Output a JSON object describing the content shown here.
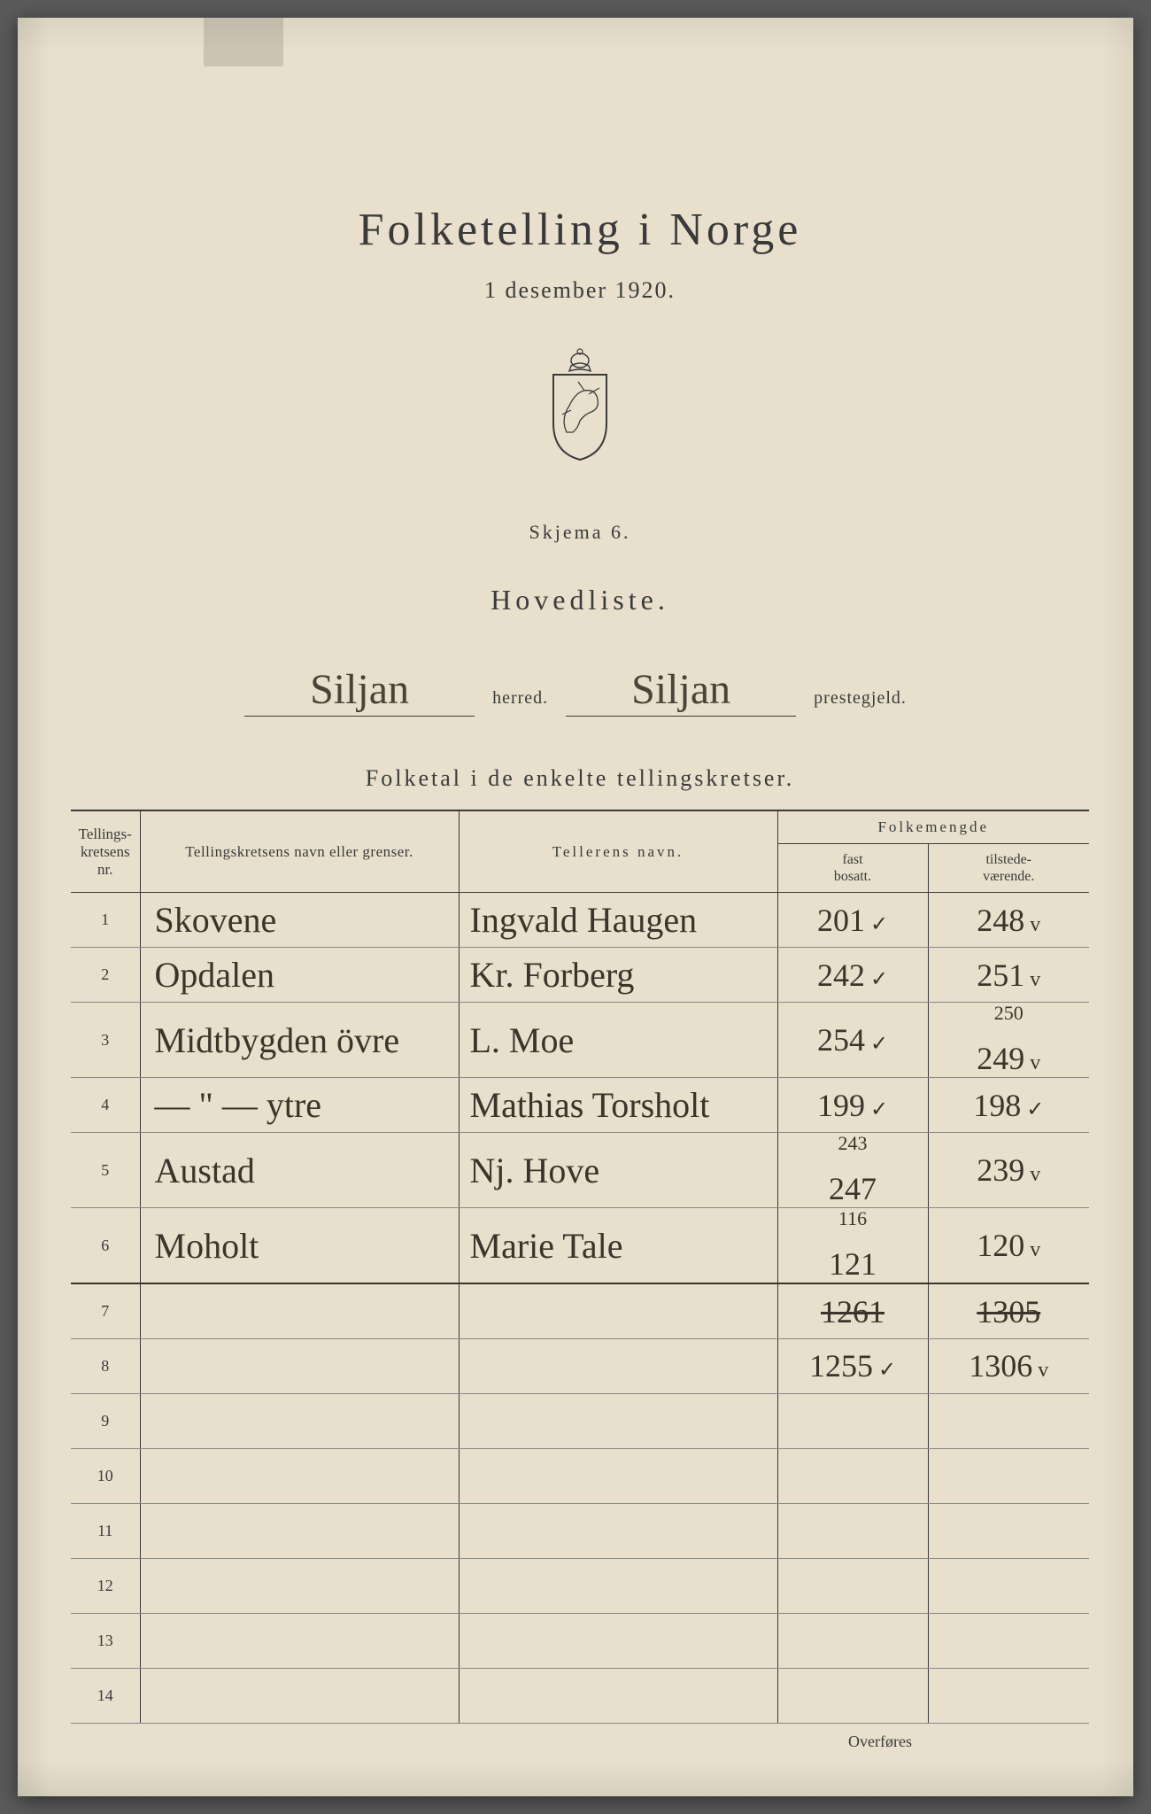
{
  "title": "Folketelling i Norge",
  "date": "1 desember 1920.",
  "skjema": "Skjema 6.",
  "listTitle": "Hovedliste.",
  "herred": {
    "value": "Siljan",
    "label": "herred."
  },
  "prestegjeld": {
    "value": "Siljan",
    "label": "prestegjeld."
  },
  "sectionTitle": "Folketal i de enkelte tellingskretser.",
  "columns": {
    "nr": "Tellings-\nkretsens\nnr.",
    "name": "Tellingskretsens navn eller grenser.",
    "teller": "Tellerens navn.",
    "folkeGroup": "Folkemengde",
    "fast": "fast\nbosatt.",
    "tilstede": "tilstede-\nværende."
  },
  "rows": [
    {
      "nr": "1",
      "name": "Skovene",
      "teller": "Ingvald Haugen",
      "fast": "201",
      "fastCheck": "✓",
      "tilstede": "248",
      "tilCheck": "v"
    },
    {
      "nr": "2",
      "name": "Opdalen",
      "teller": "Kr. Forberg",
      "fast": "242",
      "fastCheck": "✓",
      "tilstede": "251",
      "tilCheck": "v"
    },
    {
      "nr": "3",
      "name": "Midtbygden övre",
      "teller": "L. Moe",
      "fast": "254",
      "fastCheck": "✓",
      "tilstede": "249",
      "tilCorr": "250",
      "tilCheck": "v"
    },
    {
      "nr": "4",
      "name": "— \" —    ytre",
      "teller": "Mathias Torsholt",
      "fast": "199",
      "fastCheck": "✓",
      "tilstede": "198",
      "tilCheck": "✓"
    },
    {
      "nr": "5",
      "name": "Austad",
      "teller": "Nj. Hove",
      "fast": "247",
      "fastCorr": "243",
      "fastCheck": "",
      "tilstede": "239",
      "tilCheck": "v"
    },
    {
      "nr": "6",
      "name": "Moholt",
      "teller": "Marie Tale",
      "fast": "121",
      "fastCorr": "116",
      "fastCheck": "",
      "tilstede": "120",
      "tilCheck": "v"
    },
    {
      "nr": "7",
      "name": "",
      "teller": "",
      "fast": "1261",
      "fastStrike": true,
      "tilstede": "1305",
      "tilStrike": true
    },
    {
      "nr": "8",
      "name": "",
      "teller": "",
      "fast": "1255",
      "fastCheck": "✓",
      "tilstede": "1306",
      "tilCheck": "v"
    },
    {
      "nr": "9"
    },
    {
      "nr": "10"
    },
    {
      "nr": "11"
    },
    {
      "nr": "12"
    },
    {
      "nr": "13"
    },
    {
      "nr": "14"
    }
  ],
  "footer": "Overføres",
  "colors": {
    "paper": "#e8e0cc",
    "ink": "#3a3a3a",
    "handwriting": "#3a342a"
  }
}
